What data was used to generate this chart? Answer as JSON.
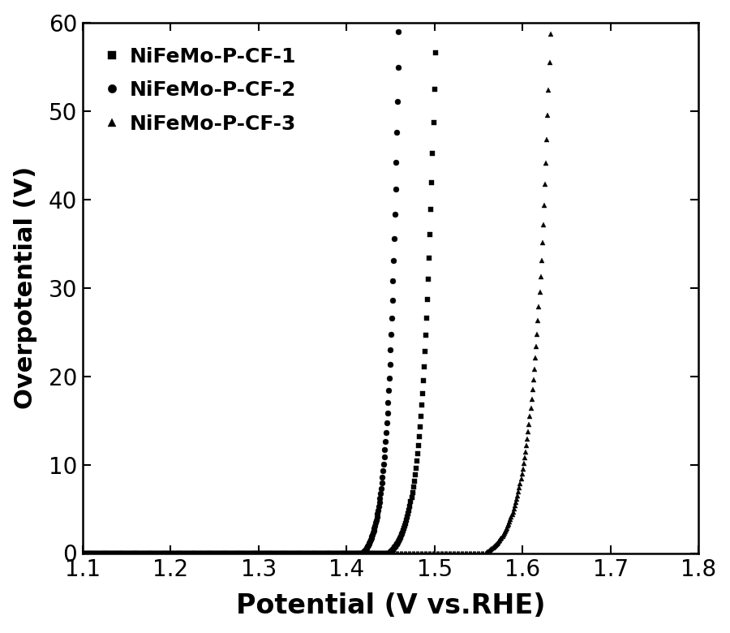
{
  "title": "",
  "xlabel": "Potential (V vs.RHE)",
  "ylabel": "Overpotential (V)",
  "xlim": [
    1.1,
    1.8
  ],
  "ylim": [
    0,
    60
  ],
  "xticks": [
    1.1,
    1.2,
    1.3,
    1.4,
    1.5,
    1.6,
    1.7,
    1.8
  ],
  "yticks": [
    0,
    10,
    20,
    30,
    40,
    50,
    60
  ],
  "series": [
    {
      "label": "NiFeMo-P-CF-1",
      "marker": "s",
      "color": "#000000",
      "onset": 1.448,
      "scale": 0.013,
      "x_max": 1.562,
      "n_flat": 200,
      "n_rise": 120
    },
    {
      "label": "NiFeMo-P-CF-2",
      "marker": "o",
      "color": "#000000",
      "onset": 1.418,
      "scale": 0.01,
      "x_max": 1.502,
      "n_flat": 180,
      "n_rise": 120
    },
    {
      "label": "NiFeMo-P-CF-3",
      "marker": "^",
      "color": "#000000",
      "onset": 1.558,
      "scale": 0.018,
      "x_max": 1.678,
      "n_flat": 200,
      "n_rise": 120
    }
  ],
  "background_color": "#ffffff",
  "markersize": 5,
  "xlabel_fontsize": 24,
  "ylabel_fontsize": 22,
  "tick_fontsize": 20,
  "legend_fontsize": 18
}
